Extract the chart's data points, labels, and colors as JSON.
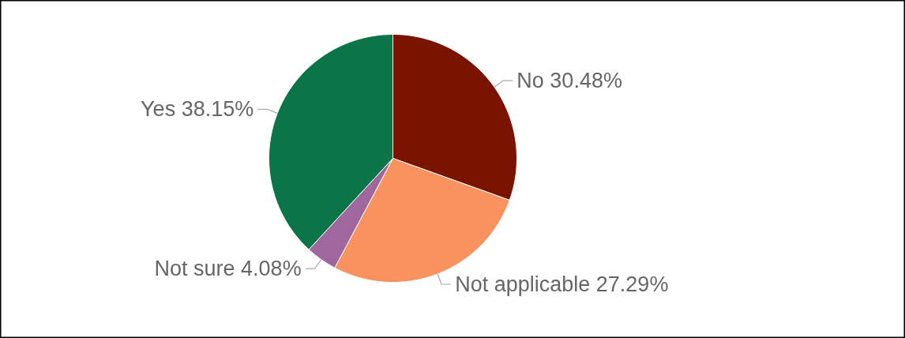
{
  "chart_data": {
    "type": "pie",
    "categories": [
      "No",
      "Not applicable",
      "Not sure",
      "Yes"
    ],
    "values": [
      30.48,
      27.29,
      4.08,
      38.15
    ],
    "value_labels": [
      "30.48%",
      "27.29%",
      "4.08%",
      "38.15%"
    ],
    "colors": [
      "#7a1300",
      "#f8935f",
      "#a0669e",
      "#0b7548"
    ]
  }
}
